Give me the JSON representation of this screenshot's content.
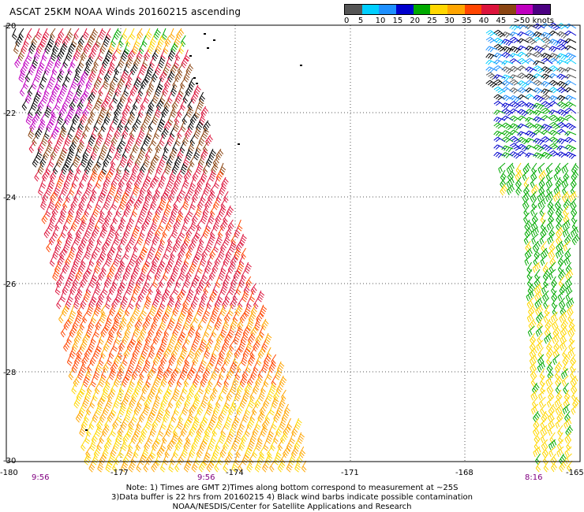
{
  "title": "ASCAT 25KM NOAA Winds 20160215 ascending",
  "legend": {
    "labels": [
      "0",
      "5",
      "10",
      "15",
      "20",
      "25",
      "30",
      "35",
      "40",
      "45",
      ">50 knots"
    ],
    "colors": [
      "#555555",
      "#00cfff",
      "#1e90ff",
      "#0000cd",
      "#00aa00",
      "#ffd700",
      "#ffa500",
      "#ff4500",
      "#dc143c",
      "#8b4513",
      "#c000c0",
      "#4b0082"
    ]
  },
  "map": {
    "lat_labels": [
      "-20",
      "-22",
      "-24",
      "-26",
      "-28",
      "-30"
    ],
    "lon_labels": [
      "-180",
      "-177",
      "-174",
      "-171",
      "-168",
      "-165"
    ],
    "time_labels": [
      "9:56",
      "9:56",
      "8:16"
    ]
  },
  "notes": [
    "Note: 1) Times are GMT 2)Times along bottom correspond to measurement at ~25S",
    "3)Data buffer is 22 hrs from 20160215 4) Black wind barbs indicate possible contamination",
    "NOAA/NESDIS/Center for Satellite Applications and Research"
  ]
}
